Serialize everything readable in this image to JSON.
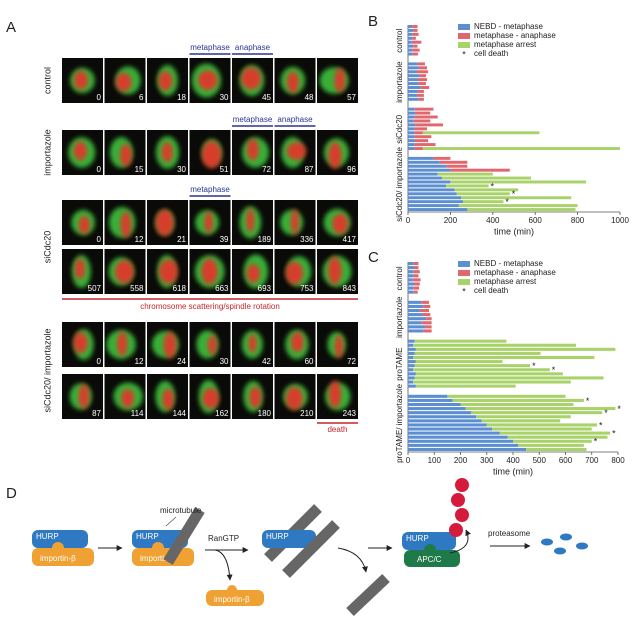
{
  "panel_labels": [
    "A",
    "B",
    "C",
    "D"
  ],
  "panel_a": {
    "conditions": [
      {
        "label": "control",
        "labels": [
          "metaphase",
          "anaphase"
        ],
        "rows": [
          [
            0,
            6,
            18,
            30,
            45,
            48,
            57
          ]
        ]
      },
      {
        "label": "importazole",
        "labels": [
          "metaphase",
          "anaphase"
        ],
        "rows": [
          [
            0,
            15,
            30,
            51,
            72,
            87,
            96
          ]
        ]
      },
      {
        "label": "siCdc20",
        "labels": [
          "metaphase",
          "chromosome scattering/spindle rotation"
        ],
        "rows": [
          [
            0,
            12,
            21,
            39,
            189,
            336,
            417
          ],
          [
            507,
            558,
            618,
            663,
            693,
            753,
            843
          ]
        ]
      },
      {
        "label": "siCdc20/ importazole",
        "labels": [
          "death"
        ],
        "rows": [
          [
            0,
            12,
            24,
            30,
            42,
            60,
            72
          ],
          [
            87,
            114,
            144,
            162,
            180,
            210,
            243
          ]
        ]
      }
    ]
  },
  "chart_data": [
    {
      "type": "stacked-hbar",
      "x_label": "time (min)",
      "xlim": [
        0,
        1000
      ],
      "xticks": [
        0,
        200,
        400,
        600,
        800,
        1000
      ],
      "legend": "top-right",
      "series": [
        {
          "name": "NEBD - metaphase",
          "color": "#5b8fd1"
        },
        {
          "name": "metaphase - anaphase",
          "color": "#e0676d"
        },
        {
          "name": "metaphase arrest",
          "color": "#a9d26a"
        }
      ],
      "marker_legend": {
        "symbol": "*",
        "name": "cell death"
      },
      "groups": [
        {
          "label": "control",
          "values": [
            [
              20,
              25,
              0
            ],
            [
              25,
              20,
              0
            ],
            [
              20,
              30,
              0
            ],
            [
              22,
              15,
              0
            ],
            [
              18,
              45,
              0
            ],
            [
              25,
              20,
              0
            ],
            [
              20,
              35,
              0
            ],
            [
              22,
              25,
              0
            ]
          ],
          "death": [
            false,
            false,
            false,
            false,
            false,
            false,
            false,
            false
          ]
        },
        {
          "label": "importazole",
          "values": [
            [
              45,
              35,
              0
            ],
            [
              50,
              40,
              0
            ],
            [
              40,
              55,
              0
            ],
            [
              55,
              30,
              0
            ],
            [
              45,
              45,
              0
            ],
            [
              50,
              35,
              0
            ],
            [
              60,
              40,
              0
            ],
            [
              45,
              30,
              0
            ],
            [
              40,
              35,
              0
            ],
            [
              50,
              25,
              0
            ]
          ],
          "death": [
            false,
            false,
            false,
            false,
            false,
            false,
            false,
            false,
            false,
            false
          ]
        },
        {
          "label": "siCdc20",
          "values": [
            [
              30,
              90,
              0
            ],
            [
              35,
              70,
              0
            ],
            [
              30,
              110,
              0
            ],
            [
              25,
              80,
              0
            ],
            [
              35,
              130,
              0
            ],
            [
              30,
              60,
              0
            ],
            [
              30,
              40,
              550
            ],
            [
              30,
              80,
              0
            ],
            [
              35,
              60,
              0
            ],
            [
              30,
              100,
              0
            ],
            [
              30,
              40,
              930
            ]
          ],
          "death": [
            false,
            false,
            false,
            false,
            false,
            false,
            false,
            false,
            false,
            false,
            false
          ]
        },
        {
          "label": "siCdc20/ importazole",
          "values": [
            [
              120,
              80,
              0
            ],
            [
              150,
              130,
              0
            ],
            [
              180,
              100,
              0
            ],
            [
              200,
              280,
              0
            ],
            [
              140,
              0,
              260
            ],
            [
              160,
              0,
              420
            ],
            [
              200,
              0,
              640
            ],
            [
              180,
              0,
              200
            ],
            [
              220,
              0,
              300
            ],
            [
              230,
              0,
              250
            ],
            [
              250,
              0,
              520
            ],
            [
              260,
              0,
              190
            ],
            [
              240,
              0,
              560
            ],
            [
              280,
              0,
              510
            ]
          ],
          "death": [
            false,
            false,
            false,
            false,
            false,
            false,
            false,
            true,
            false,
            true,
            false,
            true,
            false,
            false
          ]
        }
      ]
    },
    {
      "type": "stacked-hbar",
      "x_label": "time (min)",
      "xlim": [
        0,
        800
      ],
      "xticks": [
        0,
        100,
        200,
        300,
        400,
        500,
        600,
        700,
        800
      ],
      "legend": "top-right",
      "series": [
        {
          "name": "NEBD - metaphase",
          "color": "#5b8fd1"
        },
        {
          "name": "metaphase - anaphase",
          "color": "#e0676d"
        },
        {
          "name": "metaphase arrest",
          "color": "#a9d26a"
        }
      ],
      "marker_legend": {
        "symbol": "*",
        "name": "cell death"
      },
      "groups": [
        {
          "label": "control",
          "values": [
            [
              20,
              20,
              0
            ],
            [
              25,
              15,
              0
            ],
            [
              20,
              25,
              0
            ],
            [
              22,
              18,
              0
            ],
            [
              18,
              30,
              0
            ],
            [
              25,
              20,
              0
            ],
            [
              20,
              22,
              0
            ],
            [
              22,
              15,
              0
            ]
          ],
          "death": [
            false,
            false,
            false,
            false,
            false,
            false,
            false,
            false
          ]
        },
        {
          "label": "importazole",
          "values": [
            [
              50,
              30,
              0
            ],
            [
              60,
              25,
              0
            ],
            [
              45,
              35,
              0
            ],
            [
              55,
              30,
              0
            ],
            [
              70,
              20,
              0
            ],
            [
              50,
              40,
              0
            ],
            [
              65,
              25,
              0
            ],
            [
              60,
              30,
              0
            ]
          ],
          "death": [
            false,
            false,
            false,
            false,
            false,
            false,
            false,
            false
          ]
        },
        {
          "label": "proTAME",
          "values": [
            [
              25,
              0,
              350
            ],
            [
              20,
              0,
              620
            ],
            [
              30,
              0,
              760
            ],
            [
              25,
              0,
              480
            ],
            [
              20,
              0,
              690
            ],
            [
              30,
              0,
              330
            ],
            [
              25,
              0,
              440
            ],
            [
              20,
              0,
              520
            ],
            [
              30,
              0,
              560
            ],
            [
              25,
              0,
              720
            ],
            [
              20,
              0,
              600
            ],
            [
              30,
              0,
              380
            ]
          ],
          "death": [
            false,
            false,
            false,
            false,
            false,
            false,
            true,
            true,
            false,
            false,
            false,
            false
          ]
        },
        {
          "label": "proTAME/ importazole",
          "values": [
            [
              150,
              0,
              450
            ],
            [
              170,
              0,
              500
            ],
            [
              200,
              0,
              430
            ],
            [
              220,
              0,
              570
            ],
            [
              240,
              0,
              500
            ],
            [
              260,
              0,
              360
            ],
            [
              280,
              0,
              300
            ],
            [
              300,
              0,
              420
            ],
            [
              320,
              0,
              380
            ],
            [
              350,
              0,
              420
            ],
            [
              380,
              0,
              380
            ],
            [
              400,
              0,
              300
            ],
            [
              420,
              0,
              250
            ],
            [
              450,
              0,
              230
            ]
          ],
          "death": [
            false,
            true,
            false,
            true,
            true,
            false,
            false,
            true,
            false,
            true,
            false,
            true,
            false,
            false
          ]
        }
      ]
    }
  ],
  "diagram": {
    "s1_hurp": "HURP",
    "s1_importin": "importin-β",
    "s2_hurp": "HURP",
    "s2_importin": "importin-β",
    "microtubule": "microtubule",
    "rangtp": "RanGTP",
    "free_importin": "importin-β",
    "s3_hurp": "HURP",
    "s4_hurp": "HURP",
    "apcc": "APC/C",
    "proteasome": "proteasome"
  }
}
